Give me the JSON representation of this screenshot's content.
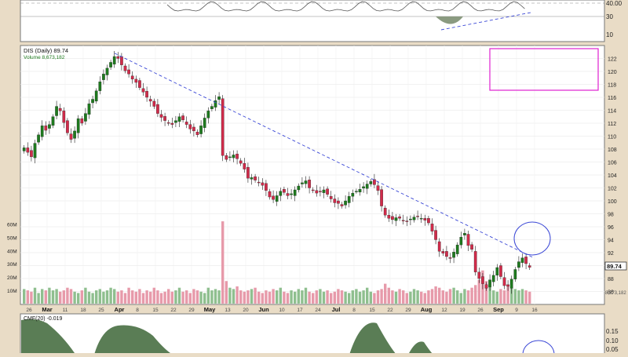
{
  "colors": {
    "up": "#1e7a1e",
    "down": "#d12b4a",
    "vol_up": "#8fbf8f",
    "vol_down": "#e79aaa",
    "trend": "#3b48d6",
    "magenta": "#e020d0",
    "circle": "#3b48d6",
    "cmf_fill": "#5a7d55",
    "panel_bg": "#ffffff",
    "outer_bg": "#e9dcc6"
  },
  "top_panel": {
    "labels": [
      "40.00",
      "30",
      "10"
    ]
  },
  "main_panel": {
    "title": "DIS (Daily) 89.74",
    "subtitle": "Volume 8,673,182",
    "last_price_label": "89.74",
    "volume_axis_labels": [
      "60M",
      "50M",
      "40M",
      "30M",
      "20M",
      "10M"
    ],
    "last_volume_label": "8,673,182"
  },
  "bottom_panel": {
    "title": "CMF(20) -0.019",
    "labels": [
      "0.15",
      "0.10",
      "0.05"
    ]
  },
  "chart_data": {
    "type": "candlestick",
    "ylim": [
      84,
      124
    ],
    "y_ticks": [
      86,
      88,
      90,
      92,
      94,
      96,
      98,
      100,
      102,
      104,
      106,
      108,
      110,
      112,
      114,
      116,
      118,
      120,
      122
    ],
    "x_ticks": [
      "26",
      "Mar",
      "11",
      "18",
      "25",
      "Apr",
      "8",
      "15",
      "22",
      "29",
      "May",
      "13",
      "20",
      "Jun",
      "10",
      "17",
      "24",
      "Jul",
      "8",
      "15",
      "22",
      "29",
      "Aug",
      "12",
      "19",
      "26",
      "Sep",
      "9",
      "16"
    ],
    "closes": [
      108.2,
      107.5,
      106.8,
      108.9,
      110.2,
      111.6,
      110.9,
      111.8,
      113.0,
      114.6,
      113.9,
      112.1,
      110.5,
      109.5,
      110.8,
      112.7,
      112.0,
      113.5,
      115.0,
      115.7,
      117.0,
      118.4,
      119.6,
      120.5,
      121.4,
      122.3,
      122.0,
      121.0,
      120.1,
      119.6,
      118.8,
      118.3,
      117.5,
      116.8,
      116.0,
      115.4,
      114.6,
      113.5,
      112.9,
      112.4,
      112.0,
      111.8,
      112.4,
      113.0,
      112.5,
      111.8,
      111.1,
      110.8,
      110.2,
      111.6,
      112.8,
      113.9,
      114.6,
      115.5,
      116.1,
      107.0,
      106.4,
      106.8,
      107.1,
      106.5,
      105.8,
      104.9,
      103.5,
      103.6,
      103.2,
      102.8,
      102.4,
      101.6,
      100.6,
      100.2,
      100.8,
      101.5,
      101.3,
      100.8,
      101.1,
      101.7,
      102.3,
      102.8,
      103.1,
      102.0,
      101.6,
      101.2,
      101.4,
      101.7,
      101.0,
      100.3,
      99.7,
      99.6,
      99.2,
      100.0,
      100.7,
      101.2,
      101.5,
      101.8,
      102.2,
      102.6,
      103.0,
      102.5,
      101.6,
      99.2,
      97.8,
      97.3,
      97.1,
      97.4,
      97.3,
      96.9,
      96.8,
      97.2,
      97.5,
      97.6,
      97.3,
      97.0,
      96.6,
      95.3,
      94.0,
      92.2,
      91.9,
      91.4,
      91.1,
      92.1,
      93.2,
      94.4,
      95.0,
      93.1,
      92.5,
      89.0,
      88.0,
      87.2,
      86.5,
      87.8,
      88.5,
      89.7,
      88.3,
      86.9,
      86.8,
      87.9,
      89.4,
      90.6,
      91.2,
      90.3,
      89.74
    ],
    "volumes_millions": [
      11,
      10,
      9,
      12,
      8,
      11,
      10,
      12,
      10,
      11,
      9,
      10,
      12,
      11,
      9,
      8,
      10,
      12,
      9,
      8,
      10,
      11,
      9,
      10,
      12,
      11,
      9,
      10,
      8,
      12,
      10,
      9,
      11,
      8,
      10,
      9,
      12,
      10,
      8,
      9,
      11,
      9,
      10,
      12,
      9,
      10,
      8,
      11,
      10,
      9,
      8,
      12,
      10,
      11,
      10,
      62,
      17,
      12,
      11,
      13,
      10,
      9,
      10,
      11,
      12,
      9,
      8,
      10,
      9,
      11,
      10,
      12,
      9,
      8,
      10,
      9,
      11,
      10,
      12,
      9,
      8,
      10,
      11,
      9,
      10,
      8,
      9,
      11,
      10,
      9,
      8,
      10,
      11,
      9,
      10,
      12,
      9,
      8,
      10,
      11,
      15,
      12,
      10,
      9,
      11,
      10,
      8,
      9,
      11,
      10,
      9,
      8,
      10,
      11,
      13,
      12,
      10,
      9,
      11,
      12,
      10,
      8,
      11,
      10,
      12,
      14,
      18,
      25,
      17,
      12,
      10,
      9,
      11,
      10,
      14,
      12,
      11,
      10,
      11,
      10,
      9
    ]
  }
}
